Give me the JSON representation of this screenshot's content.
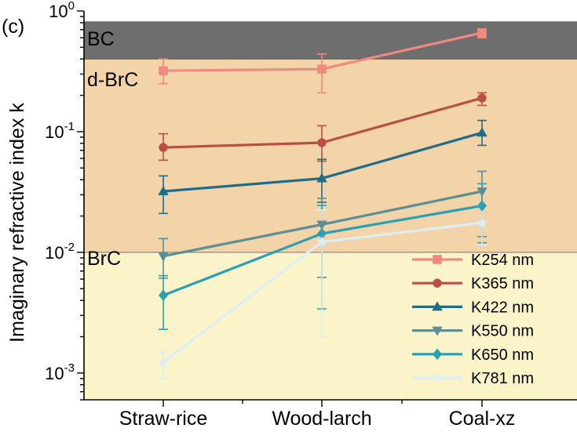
{
  "chart_data": {
    "type": "line",
    "panel_label": "(c)",
    "title": "",
    "xlabel": "",
    "ylabel": "Imaginary refractive index k",
    "y_scale": "log",
    "ylim": [
      0.0006,
      1.0
    ],
    "categories": [
      "Straw-rice",
      "Wood-larch",
      "Coal-xz"
    ],
    "y_ticks": [
      {
        "value": 1.0,
        "label_base": "10",
        "label_exp": "0"
      },
      {
        "value": 0.1,
        "label_base": "10",
        "label_exp": "-1"
      },
      {
        "value": 0.01,
        "label_base": "10",
        "label_exp": "-2"
      },
      {
        "value": 0.001,
        "label_base": "10",
        "label_exp": "-3"
      }
    ],
    "regions": [
      {
        "label": "BC",
        "from": 0.4,
        "to": 0.82,
        "color": "#6e6e6e"
      },
      {
        "label": "d-BrC",
        "from": 0.01,
        "to": 0.4,
        "color": "#f3d3a8"
      },
      {
        "label": "BrC",
        "from": 0.0006,
        "to": 0.01,
        "color": "#fbf4c8"
      }
    ],
    "legend_position": "bottom-right",
    "series": [
      {
        "name": "K254 nm",
        "marker": "square",
        "color": "#f08a80",
        "values": [
          0.32,
          0.33,
          0.66
        ],
        "err_low": [
          0.25,
          0.21,
          0.6
        ],
        "err_high": [
          0.4,
          0.44,
          0.71
        ]
      },
      {
        "name": "K365 nm",
        "marker": "circle",
        "color": "#b94e45",
        "values": [
          0.074,
          0.081,
          0.19
        ],
        "err_low": [
          0.058,
          0.057,
          0.165
        ],
        "err_high": [
          0.096,
          0.112,
          0.21
        ]
      },
      {
        "name": "K422 nm",
        "marker": "triangle-up",
        "color": "#1f6c8c",
        "values": [
          0.032,
          0.041,
          0.098
        ],
        "err_low": [
          0.021,
          0.026,
          0.077
        ],
        "err_high": [
          0.043,
          0.059,
          0.124
        ]
      },
      {
        "name": "K550 nm",
        "marker": "triangle-down",
        "color": "#5a8f96",
        "values": [
          0.0093,
          0.017,
          0.032
        ],
        "err_low": [
          0.0061,
          0.0062,
          0.0135
        ],
        "err_high": [
          0.013,
          0.028,
          0.047
        ]
      },
      {
        "name": "K650 nm",
        "marker": "diamond",
        "color": "#2aa0b4",
        "values": [
          0.0044,
          0.0143,
          0.0243
        ],
        "err_low": [
          0.0023,
          0.0034,
          0.012
        ],
        "err_high": [
          0.0064,
          0.0245,
          0.037
        ]
      },
      {
        "name": "K781 nm",
        "marker": "star",
        "color": "#ddeef5",
        "values": [
          0.00123,
          0.0122,
          0.0176
        ],
        "err_low": [
          0.0009,
          0.002,
          0.0115
        ],
        "err_high": [
          0.0015,
          0.0224,
          0.0245
        ]
      }
    ]
  }
}
